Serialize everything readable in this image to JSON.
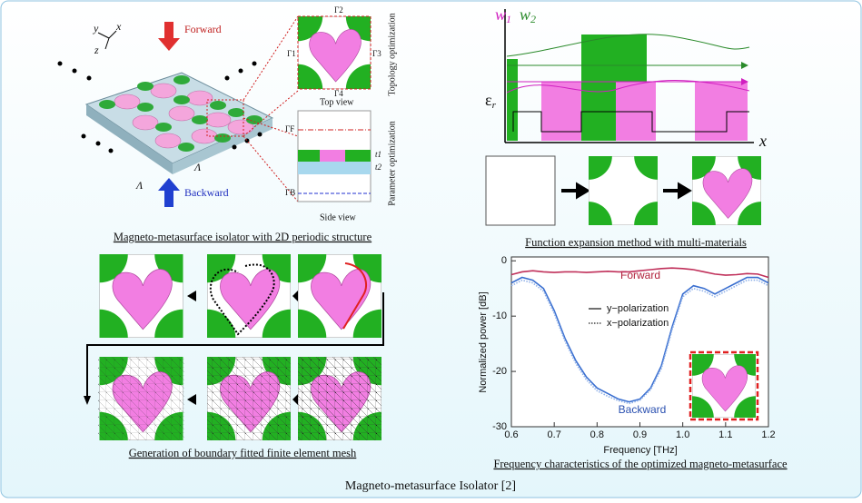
{
  "title": "Magneto-metasurface Isolator [2]",
  "isolator": {
    "caption": "Magneto-metasurface isolator with 2D periodic structure",
    "forward": "Forward",
    "backward": "Backward",
    "top_view": "Top view",
    "side_view": "Side view",
    "topology": "Topology optimization",
    "parameter": "Parameter optimization",
    "axis_x": "x",
    "axis_y": "y",
    "axis_z": "z",
    "gamma_1": "Γ1",
    "gamma_2": "Γ2",
    "gamma_3": "Γ3",
    "gamma_4": "Γ4",
    "gamma_f": "ΓF",
    "gamma_b": "ΓB",
    "t1": "t1",
    "t2": "t2",
    "lambda": "Λ"
  },
  "expansion": {
    "caption": "Function expansion method with multi-materials",
    "w": "w",
    "sub_1": "1",
    "sub_2": "2",
    "eps": "ε",
    "sub_r": "r",
    "x": "x"
  },
  "mesh": {
    "caption": "Generation of boundary fitted finite element mesh"
  },
  "chart_caption": "Frequency characteristics of the optimized magneto-metasurface",
  "chart_data": {
    "type": "line",
    "x_label": "Frequency [THz]",
    "y_label": "Normalized power [dB]",
    "x": [
      0.6,
      0.625,
      0.65,
      0.675,
      0.7,
      0.725,
      0.75,
      0.775,
      0.8,
      0.825,
      0.85,
      0.875,
      0.9,
      0.925,
      0.95,
      0.975,
      1.0,
      1.025,
      1.05,
      1.075,
      1.1,
      1.125,
      1.15,
      1.175,
      1.2
    ],
    "series": [
      {
        "color": "#c0305a",
        "style": "solid",
        "values": [
          -2.5,
          -2,
          -1.8,
          -2,
          -2.1,
          -2,
          -2,
          -2.1,
          -2,
          -1.9,
          -2,
          -2,
          -1.8,
          -1.6,
          -1.4,
          -1.3,
          -1.4,
          -1.6,
          -2,
          -2.4,
          -2.6,
          -2.5,
          -2.3,
          -2.4,
          -3
        ]
      },
      {
        "name": "y−polarization",
        "color": "#3a6fd0",
        "style": "solid",
        "values": [
          -4,
          -3,
          -3.5,
          -5,
          -9,
          -14,
          -18,
          -21,
          -23,
          -24,
          -25,
          -25.5,
          -25,
          -23,
          -19,
          -12,
          -6,
          -4.5,
          -5,
          -6,
          -5,
          -4,
          -3,
          -3,
          -4
        ]
      },
      {
        "name": "x−polarization",
        "color": "#8fb0e8",
        "style": "dotted",
        "values": [
          -4.5,
          -3.5,
          -4,
          -5.5,
          -9.5,
          -14.5,
          -18.5,
          -21.5,
          -23.5,
          -24.5,
          -25.3,
          -25.8,
          -25.2,
          -23.3,
          -19.5,
          -12.5,
          -6.5,
          -5,
          -5.5,
          -6.5,
          -5.5,
          -4.5,
          -3.5,
          -3.5,
          -4.5
        ]
      }
    ],
    "annotations": [
      "Forward",
      "Backward"
    ],
    "xlim": [
      0.6,
      1.2
    ],
    "xticks": [
      0.6,
      0.7,
      0.8,
      0.9,
      {
        "value": 1,
        "label": "1.0"
      },
      1.1,
      1.2
    ],
    "ylim": [
      -30,
      0.7
    ],
    "yticks": [
      0,
      -10,
      -20,
      -30
    ]
  }
}
